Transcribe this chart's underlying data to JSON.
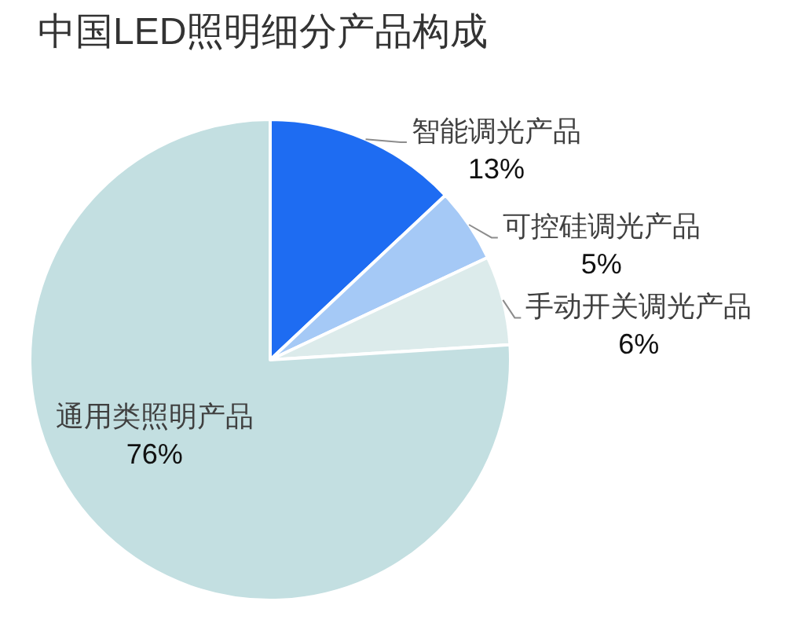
{
  "chart_data": {
    "type": "pie",
    "title": "中国LED照明细分产品构成",
    "categories": [
      "智能调光产品",
      "可控硅调光产品",
      "手动开关调光产品",
      "通用类照明产品"
    ],
    "values": [
      13,
      5,
      6,
      76
    ],
    "colors": [
      "#1e6cf2",
      "#a5c9f6",
      "#dcebeb",
      "#c3dfe1"
    ],
    "value_labels": [
      "13%",
      "5%",
      "6%",
      "76%"
    ]
  }
}
